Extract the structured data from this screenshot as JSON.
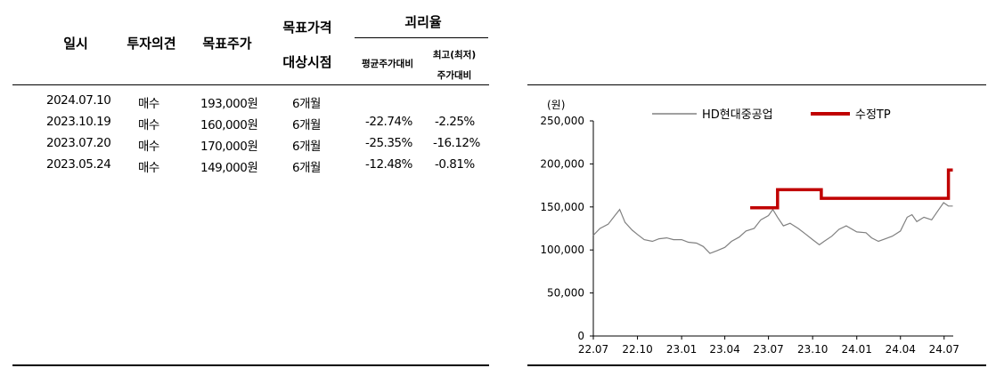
{
  "table": {
    "headers": {
      "date": "일시",
      "opinion": "투자의견",
      "target": "목표주가",
      "target_period_line1": "목표가격",
      "target_period_line2": "대상시점",
      "divergence": "괴리율",
      "avg_line1": "평균주가대비",
      "high_line1": "최고(최저)",
      "high_line2": "주가대비"
    },
    "rows": [
      {
        "date": "2024.07.10",
        "opinion": "매수",
        "target": "193,000원",
        "period": "6개월",
        "avg": "",
        "high": ""
      },
      {
        "date": "2023.10.19",
        "opinion": "매수",
        "target": "160,000원",
        "period": "6개월",
        "avg": "-22.74%",
        "high": "-2.25%"
      },
      {
        "date": "2023.07.20",
        "opinion": "매수",
        "target": "170,000원",
        "period": "6개월",
        "avg": "-25.35%",
        "high": "-16.12%"
      },
      {
        "date": "2023.05.24",
        "opinion": "매수",
        "target": "149,000원",
        "period": "6개월",
        "avg": "-12.48%",
        "high": "-0.81%"
      }
    ]
  },
  "chart_data": {
    "type": "line",
    "unit_label": "(원)",
    "ylim": [
      0,
      250000
    ],
    "yticks": [
      0,
      50000,
      100000,
      150000,
      200000,
      250000
    ],
    "ytick_labels": [
      "0",
      "50,000",
      "100,000",
      "150,000",
      "200,000",
      "250,000"
    ],
    "xlim": [
      "2022-07-01",
      "2024-07-20"
    ],
    "xtick_labels": [
      "22.07",
      "22.10",
      "23.01",
      "23.04",
      "23.07",
      "23.10",
      "24.01",
      "24.04",
      "24.07"
    ],
    "xtick_dates": [
      "2022-07-01",
      "2022-10-01",
      "2023-01-01",
      "2023-04-01",
      "2023-07-01",
      "2023-10-01",
      "2024-01-01",
      "2024-04-01",
      "2024-07-01"
    ],
    "legend_position": "top",
    "series": [
      {
        "name": "HD현대중공업",
        "color": "#808080",
        "points": [
          [
            "2022-07-01",
            117000
          ],
          [
            "2022-07-15",
            125000
          ],
          [
            "2022-08-01",
            130000
          ],
          [
            "2022-08-15",
            140000
          ],
          [
            "2022-08-25",
            147000
          ],
          [
            "2022-09-05",
            132000
          ],
          [
            "2022-09-20",
            123000
          ],
          [
            "2022-10-01",
            118000
          ],
          [
            "2022-10-15",
            112000
          ],
          [
            "2022-11-01",
            110000
          ],
          [
            "2022-11-15",
            113000
          ],
          [
            "2022-12-01",
            114000
          ],
          [
            "2022-12-15",
            112000
          ],
          [
            "2023-01-01",
            112000
          ],
          [
            "2023-01-15",
            109000
          ],
          [
            "2023-02-01",
            108000
          ],
          [
            "2023-02-15",
            104000
          ],
          [
            "2023-03-01",
            96000
          ],
          [
            "2023-03-15",
            99000
          ],
          [
            "2023-04-01",
            103000
          ],
          [
            "2023-04-15",
            110000
          ],
          [
            "2023-05-01",
            115000
          ],
          [
            "2023-05-15",
            122000
          ],
          [
            "2023-06-01",
            125000
          ],
          [
            "2023-06-15",
            135000
          ],
          [
            "2023-07-01",
            140000
          ],
          [
            "2023-07-10",
            147000
          ],
          [
            "2023-07-20",
            138000
          ],
          [
            "2023-08-01",
            128000
          ],
          [
            "2023-08-15",
            131000
          ],
          [
            "2023-09-01",
            125000
          ],
          [
            "2023-09-15",
            119000
          ],
          [
            "2023-10-01",
            112000
          ],
          [
            "2023-10-15",
            106000
          ],
          [
            "2023-10-25",
            110000
          ],
          [
            "2023-11-10",
            116000
          ],
          [
            "2023-11-25",
            124000
          ],
          [
            "2023-12-10",
            128000
          ],
          [
            "2024-01-01",
            121000
          ],
          [
            "2024-01-20",
            120000
          ],
          [
            "2024-02-01",
            114000
          ],
          [
            "2024-02-15",
            110000
          ],
          [
            "2024-03-01",
            113000
          ],
          [
            "2024-03-15",
            116000
          ],
          [
            "2024-04-01",
            122000
          ],
          [
            "2024-04-15",
            138000
          ],
          [
            "2024-04-25",
            141000
          ],
          [
            "2024-05-05",
            133000
          ],
          [
            "2024-05-20",
            138000
          ],
          [
            "2024-06-05",
            135000
          ],
          [
            "2024-06-20",
            147000
          ],
          [
            "2024-06-30",
            155000
          ],
          [
            "2024-07-10",
            151000
          ],
          [
            "2024-07-19",
            151000
          ]
        ]
      },
      {
        "name": "수정TP",
        "color": "#c00000",
        "points": [
          [
            "2023-05-24",
            149000
          ],
          [
            "2023-07-20",
            149000
          ],
          [
            "2023-07-20",
            170000
          ],
          [
            "2023-10-19",
            170000
          ],
          [
            "2023-10-19",
            160000
          ],
          [
            "2024-07-10",
            160000
          ],
          [
            "2024-07-10",
            193000
          ],
          [
            "2024-07-19",
            193000
          ]
        ]
      }
    ]
  }
}
